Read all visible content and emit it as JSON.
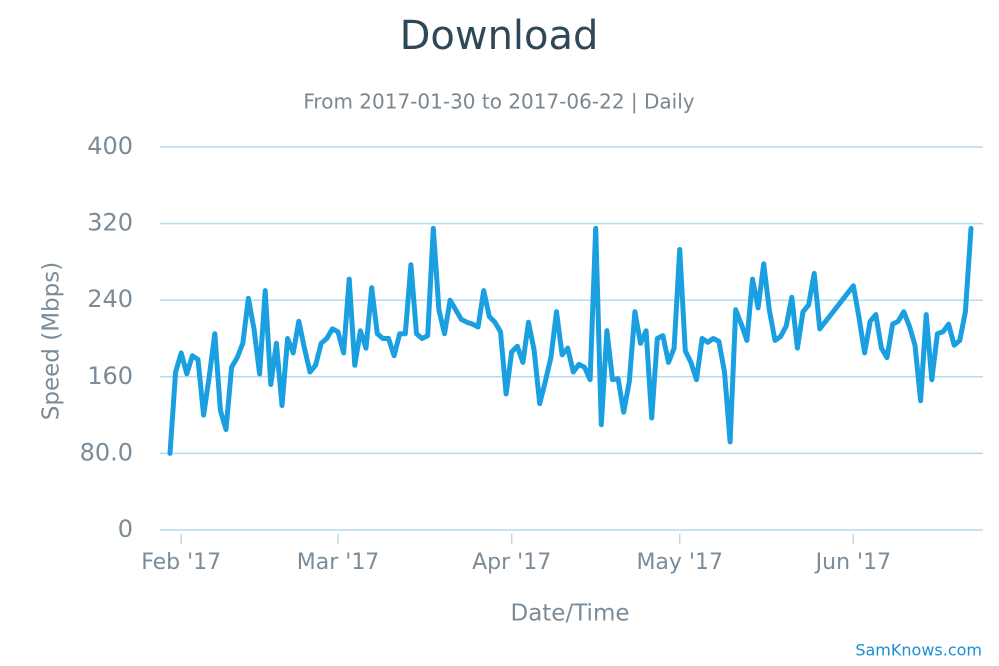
{
  "chart_data": {
    "type": "line",
    "title": "Download",
    "subtitle": "From 2017-01-30 to 2017-06-22 | Daily",
    "x_label": "Date/Time",
    "y_label": "Speed (Mbps)",
    "credits": "SamKnows.com",
    "color": "#1a9fe0",
    "grid": true,
    "xlim": [
      "2017-01-30",
      "2017-06-22"
    ],
    "xticks": [
      {
        "value": "2017-02-01",
        "label": "Feb '17"
      },
      {
        "value": "2017-03-01",
        "label": "Mar '17"
      },
      {
        "value": "2017-04-01",
        "label": "Apr '17"
      },
      {
        "value": "2017-05-01",
        "label": "May '17"
      },
      {
        "value": "2017-06-01",
        "label": "Jun '17"
      }
    ],
    "ylim": [
      0,
      400
    ],
    "yticks": [
      0,
      {
        "value": 80,
        "label": "80.0"
      },
      160,
      240,
      320,
      400
    ],
    "x": [
      "2017-01-30",
      "2017-01-31",
      "2017-02-01",
      "2017-02-02",
      "2017-02-03",
      "2017-02-04",
      "2017-02-05",
      "2017-02-06",
      "2017-02-07",
      "2017-02-08",
      "2017-02-09",
      "2017-02-10",
      "2017-02-11",
      "2017-02-12",
      "2017-02-13",
      "2017-02-14",
      "2017-02-15",
      "2017-02-16",
      "2017-02-17",
      "2017-02-18",
      "2017-02-19",
      "2017-02-20",
      "2017-02-21",
      "2017-02-22",
      "2017-02-23",
      "2017-02-24",
      "2017-02-25",
      "2017-02-26",
      "2017-02-27",
      "2017-02-28",
      "2017-03-01",
      "2017-03-02",
      "2017-03-03",
      "2017-03-04",
      "2017-03-05",
      "2017-03-06",
      "2017-03-07",
      "2017-03-08",
      "2017-03-09",
      "2017-03-10",
      "2017-03-11",
      "2017-03-12",
      "2017-03-13",
      "2017-03-14",
      "2017-03-15",
      "2017-03-16",
      "2017-03-17",
      "2017-03-18",
      "2017-03-19",
      "2017-03-20",
      "2017-03-21",
      "2017-03-22",
      "2017-03-23",
      "2017-03-24",
      "2017-03-25",
      "2017-03-26",
      "2017-03-27",
      "2017-03-28",
      "2017-03-29",
      "2017-03-30",
      "2017-03-31",
      "2017-04-01",
      "2017-04-02",
      "2017-04-03",
      "2017-04-04",
      "2017-04-05",
      "2017-04-06",
      "2017-04-07",
      "2017-04-08",
      "2017-04-09",
      "2017-04-10",
      "2017-04-11",
      "2017-04-12",
      "2017-04-13",
      "2017-04-14",
      "2017-04-15",
      "2017-04-16",
      "2017-04-17",
      "2017-04-18",
      "2017-04-19",
      "2017-04-20",
      "2017-04-21",
      "2017-04-22",
      "2017-04-23",
      "2017-04-24",
      "2017-04-25",
      "2017-04-26",
      "2017-04-27",
      "2017-04-28",
      "2017-04-29",
      "2017-04-30",
      "2017-05-01",
      "2017-05-02",
      "2017-05-03",
      "2017-05-04",
      "2017-05-05",
      "2017-05-06",
      "2017-05-07",
      "2017-05-08",
      "2017-05-09",
      "2017-05-10",
      "2017-05-11",
      "2017-05-12",
      "2017-05-13",
      "2017-05-14",
      "2017-05-15",
      "2017-05-16",
      "2017-05-17",
      "2017-05-18",
      "2017-05-19",
      "2017-05-20",
      "2017-05-21",
      "2017-05-22",
      "2017-05-23",
      "2017-05-24",
      "2017-05-25",
      "2017-05-26",
      "2017-06-01",
      "2017-06-02",
      "2017-06-03",
      "2017-06-04",
      "2017-06-05",
      "2017-06-06",
      "2017-06-07",
      "2017-06-08",
      "2017-06-09",
      "2017-06-10",
      "2017-06-11",
      "2017-06-12",
      "2017-06-13",
      "2017-06-14",
      "2017-06-15",
      "2017-06-16",
      "2017-06-17",
      "2017-06-18",
      "2017-06-19",
      "2017-06-20",
      "2017-06-21",
      "2017-06-22"
    ],
    "values": [
      80,
      165,
      185,
      163,
      182,
      178,
      120,
      160,
      205,
      125,
      105,
      170,
      180,
      195,
      242,
      210,
      163,
      250,
      152,
      195,
      130,
      200,
      185,
      218,
      190,
      165,
      172,
      195,
      200,
      210,
      207,
      185,
      262,
      172,
      208,
      190,
      253,
      205,
      200,
      200,
      182,
      205,
      205,
      277,
      205,
      200,
      203,
      315,
      230,
      205,
      240,
      230,
      220,
      217,
      215,
      212,
      250,
      223,
      217,
      207,
      142,
      186,
      192,
      175,
      217,
      188,
      132,
      155,
      180,
      228,
      183,
      190,
      165,
      173,
      170,
      157,
      315,
      110,
      208,
      157,
      158,
      123,
      155,
      228,
      195,
      208,
      117,
      200,
      203,
      175,
      190,
      293,
      187,
      175,
      157,
      200,
      196,
      200,
      197,
      165,
      92,
      230,
      215,
      198,
      262,
      232,
      278,
      230,
      198,
      202,
      213,
      243,
      190,
      228,
      235,
      268,
      210,
      255,
      222,
      185,
      218,
      225,
      190,
      180,
      215,
      218,
      228,
      213,
      193,
      135,
      225,
      157,
      205,
      207,
      215,
      193,
      198,
      228,
      315
    ]
  }
}
